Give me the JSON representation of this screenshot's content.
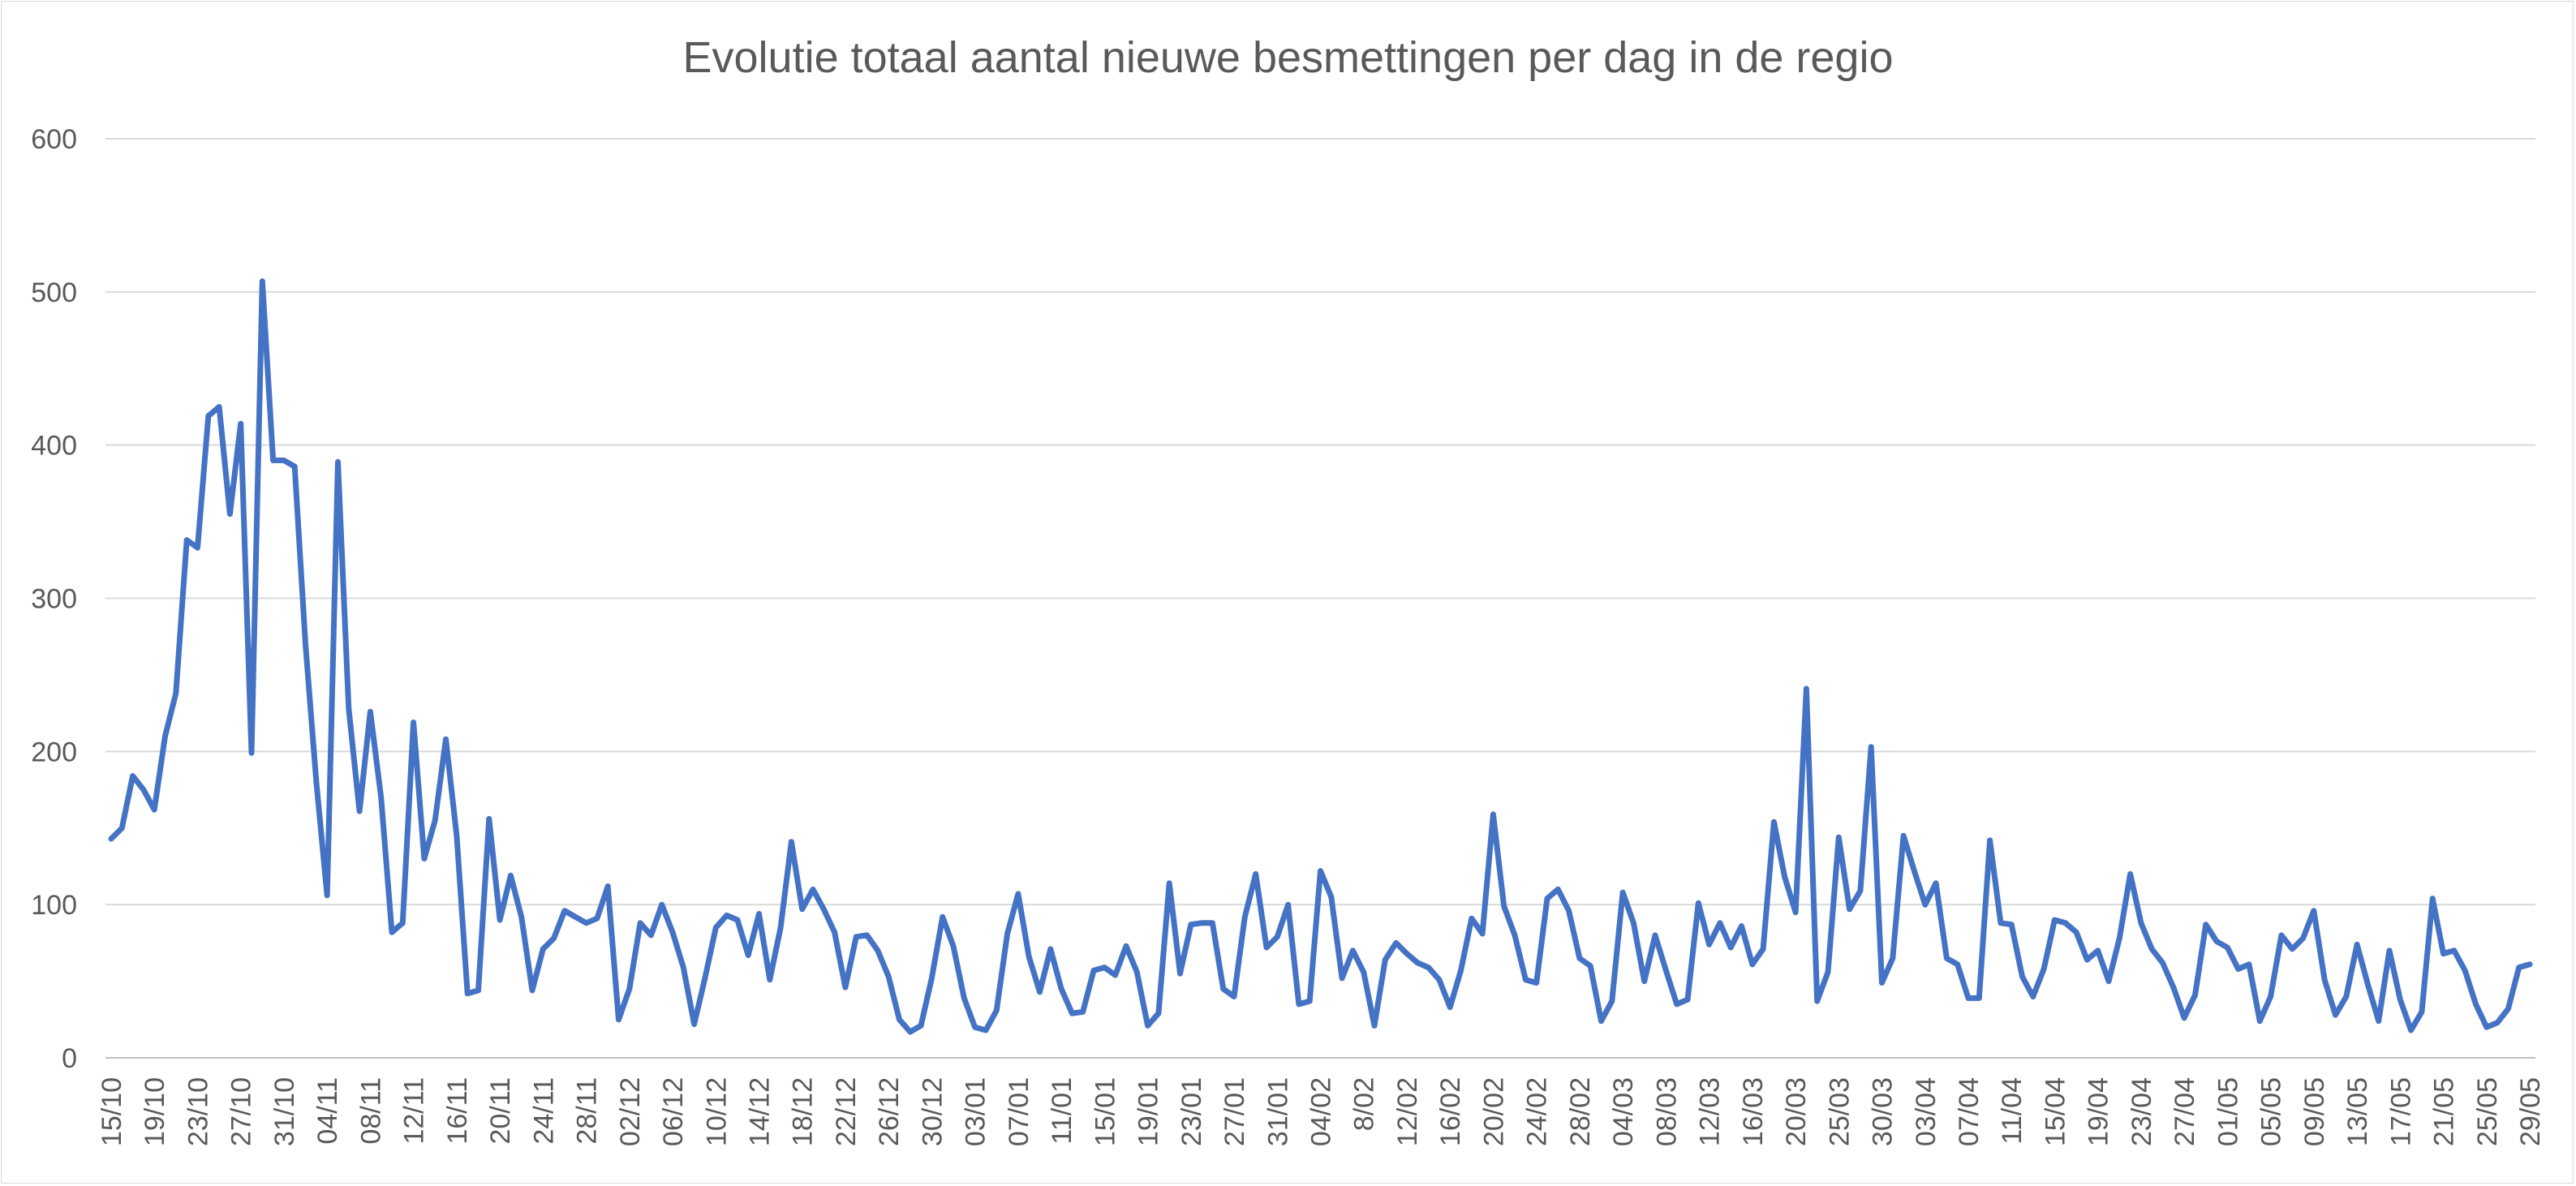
{
  "chart_data": {
    "type": "line",
    "title": "Evolutie totaal aantal nieuwe besmettingen per dag in de regio",
    "xlabel": "",
    "ylabel": "",
    "ylim": [
      0,
      600
    ],
    "yticks": [
      "0",
      "100",
      "200",
      "300",
      "400",
      "500",
      "600"
    ],
    "grid": true,
    "legend": "none",
    "color": "#4472C4",
    "xtick_labels": [
      "15/10",
      "19/10",
      "23/10",
      "27/10",
      "31/10",
      "04/11",
      "08/11",
      "12/11",
      "16/11",
      "20/11",
      "24/11",
      "28/11",
      "02/12",
      "06/12",
      "10/12",
      "14/12",
      "18/12",
      "22/12",
      "26/12",
      "30/12",
      "03/01",
      "07/01",
      "11/01",
      "15/01",
      "19/01",
      "23/01",
      "27/01",
      "31/01",
      "04/02",
      "8/02",
      "12/02",
      "16/02",
      "20/02",
      "24/02",
      "28/02",
      "04/03",
      "08/03",
      "12/03",
      "16/03",
      "20/03",
      "25/03",
      "30/03",
      "03/04",
      "07/04",
      "11/04",
      "15/04",
      "19/04",
      "23/04",
      "27/04",
      "01/05",
      "05/05",
      "09/05",
      "13/05",
      "17/05",
      "21/05",
      "25/05",
      "29/05"
    ],
    "series": [
      {
        "values": [
          143,
          150,
          184,
          175,
          162,
          210,
          238,
          338,
          333,
          419,
          425,
          355,
          414,
          199,
          507,
          390,
          390,
          386,
          270,
          180,
          106,
          389,
          228,
          161,
          226,
          170,
          82,
          88,
          219,
          130,
          155,
          208,
          145,
          42,
          44,
          156,
          90,
          119,
          92,
          44,
          71,
          78,
          96,
          92,
          88,
          91,
          112,
          25,
          45,
          88,
          80,
          100,
          82,
          59,
          22,
          52,
          85,
          93,
          90,
          67,
          94,
          51,
          85,
          141,
          97,
          110,
          97,
          82,
          46,
          79,
          80,
          70,
          53,
          25,
          17,
          21,
          52,
          92,
          73,
          39,
          20,
          18,
          31,
          81,
          107,
          66,
          43,
          71,
          45,
          29,
          30,
          57,
          59,
          54,
          73,
          56,
          21,
          29,
          114,
          55,
          87,
          88,
          88,
          45,
          40,
          92,
          120,
          72,
          79,
          100,
          35,
          37,
          122,
          105,
          52,
          70,
          56,
          21,
          64,
          75,
          68,
          62,
          59,
          51,
          33,
          57,
          91,
          81,
          159,
          99,
          80,
          51,
          49,
          104,
          110,
          96,
          65,
          60,
          24,
          37,
          108,
          88,
          50,
          80,
          57,
          35,
          38,
          101,
          74,
          88,
          72,
          86,
          61,
          71,
          154,
          118,
          95,
          241,
          37,
          56,
          144,
          97,
          109,
          203,
          49,
          65,
          145,
          122,
          100,
          114,
          65,
          61,
          39,
          39,
          142,
          88,
          87,
          53,
          40,
          58,
          90,
          88,
          82,
          64,
          70,
          50,
          78,
          120,
          88,
          71,
          62,
          46,
          26,
          41,
          87,
          76,
          72,
          58,
          61,
          24,
          40,
          80,
          71,
          78,
          96,
          51,
          28,
          40,
          74,
          48,
          24,
          70,
          38,
          18,
          30,
          104,
          68,
          70,
          57,
          35,
          20,
          23,
          32,
          59,
          61
        ]
      }
    ]
  }
}
